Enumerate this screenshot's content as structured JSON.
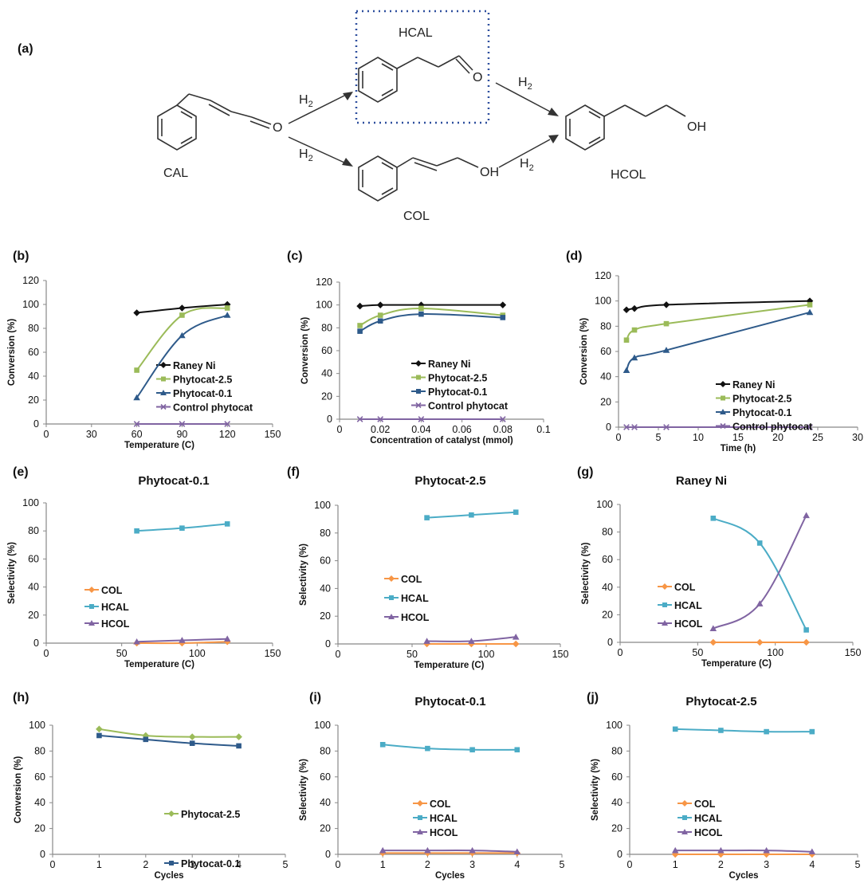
{
  "scheme": {
    "panel_label": "(a)",
    "molecules": {
      "cal": "CAL",
      "hcal": "HCAL",
      "col": "COL",
      "hcol": "HCOL"
    },
    "atoms": {
      "o": "O",
      "oh": "OH"
    },
    "reagent": "H",
    "reagent_sub": "2"
  },
  "chart_data": [
    {
      "id": "b",
      "panel_label": "(b)",
      "type": "line",
      "title": "",
      "xlabel": "Temperature (C)",
      "ylabel": "Conversion (%)",
      "xlim": [
        0,
        150
      ],
      "ylim": [
        0,
        120
      ],
      "xticks": [
        "0",
        "30",
        "60",
        "90",
        "120",
        "150"
      ],
      "yticks": [
        "0",
        "20",
        "40",
        "60",
        "80",
        "100",
        "120"
      ],
      "legend_position": "inside-right",
      "series": [
        {
          "name": "Raney Ni",
          "color": "#111111",
          "marker": "diamond",
          "x": [
            60,
            90,
            120
          ],
          "y": [
            93,
            97,
            100
          ]
        },
        {
          "name": "Phytocat-2.5",
          "color": "#9bbb59",
          "marker": "square",
          "x": [
            60,
            90,
            120
          ],
          "y": [
            45,
            91,
            97
          ]
        },
        {
          "name": "Phytocat-0.1",
          "color": "#2e5a8a",
          "marker": "triangle",
          "x": [
            60,
            90,
            120
          ],
          "y": [
            22,
            74,
            91
          ]
        },
        {
          "name": "Control phytocat",
          "color": "#8064a2",
          "marker": "x",
          "x": [
            60,
            90,
            120
          ],
          "y": [
            0,
            0,
            0
          ]
        }
      ]
    },
    {
      "id": "c",
      "panel_label": "(c)",
      "type": "line",
      "title": "",
      "xlabel": "Concentration of catalyst (mmol)",
      "ylabel": "Conversion (%)",
      "xlim": [
        0,
        0.1
      ],
      "ylim": [
        0,
        120
      ],
      "xticks": [
        "0",
        "0.02",
        "0.04",
        "0.06",
        "0.08",
        "0.1"
      ],
      "yticks": [
        "0",
        "20",
        "40",
        "60",
        "80",
        "100",
        "120"
      ],
      "legend_position": "inside-right",
      "series": [
        {
          "name": "Raney Ni",
          "color": "#111111",
          "marker": "diamond",
          "x": [
            0.01,
            0.02,
            0.04,
            0.08
          ],
          "y": [
            99,
            100,
            100,
            100
          ]
        },
        {
          "name": "Phytocat-2.5",
          "color": "#9bbb59",
          "marker": "square",
          "x": [
            0.01,
            0.02,
            0.04,
            0.08
          ],
          "y": [
            82,
            91,
            97,
            91
          ]
        },
        {
          "name": "Phytocat-0.1",
          "color": "#2e5a8a",
          "marker": "square",
          "x": [
            0.01,
            0.02,
            0.04,
            0.08
          ],
          "y": [
            77,
            86,
            92,
            89
          ]
        },
        {
          "name": "Control phytocat",
          "color": "#8064a2",
          "marker": "x",
          "x": [
            0.01,
            0.02,
            0.04,
            0.08
          ],
          "y": [
            0,
            0,
            0,
            0
          ]
        }
      ]
    },
    {
      "id": "d",
      "panel_label": "(d)",
      "type": "line",
      "title": "",
      "xlabel": "Time (h)",
      "ylabel": "Conversion (%)",
      "xlim": [
        0,
        30
      ],
      "ylim": [
        0,
        120
      ],
      "xticks": [
        "0",
        "5",
        "10",
        "15",
        "20",
        "25",
        "30"
      ],
      "yticks": [
        "0",
        "20",
        "40",
        "60",
        "80",
        "100",
        "120"
      ],
      "legend_position": "inside-right",
      "series": [
        {
          "name": "Raney Ni",
          "color": "#111111",
          "marker": "diamond",
          "x": [
            1,
            2,
            6,
            24
          ],
          "y": [
            93,
            94,
            97,
            100
          ]
        },
        {
          "name": "Phytocat-2.5",
          "color": "#9bbb59",
          "marker": "square",
          "x": [
            1,
            2,
            6,
            24
          ],
          "y": [
            69,
            77,
            82,
            97
          ]
        },
        {
          "name": "Phytocat-0.1",
          "color": "#2e5a8a",
          "marker": "triangle",
          "x": [
            1,
            2,
            6,
            24
          ],
          "y": [
            45,
            55,
            61,
            91
          ]
        },
        {
          "name": "Control phytocat",
          "color": "#8064a2",
          "marker": "x",
          "x": [
            1,
            2,
            6,
            24
          ],
          "y": [
            0,
            0,
            0,
            0
          ]
        }
      ]
    },
    {
      "id": "e",
      "panel_label": "(e)",
      "type": "line",
      "title": "Phytocat-0.1",
      "xlabel": "Temperature (C)",
      "ylabel": "Selectivity (%)",
      "xlim": [
        0,
        150
      ],
      "ylim": [
        0,
        100
      ],
      "xticks": [
        "0",
        "50",
        "100",
        "150"
      ],
      "yticks": [
        "0",
        "20",
        "40",
        "60",
        "80",
        "100"
      ],
      "legend_position": "inside-left",
      "series": [
        {
          "name": "COL",
          "color": "#f79646",
          "marker": "diamond",
          "x": [
            60,
            90,
            120
          ],
          "y": [
            0,
            0,
            1
          ]
        },
        {
          "name": "HCAL",
          "color": "#4bacc6",
          "marker": "square",
          "x": [
            60,
            90,
            120
          ],
          "y": [
            80,
            82,
            85
          ]
        },
        {
          "name": "HCOL",
          "color": "#8064a2",
          "marker": "triangle",
          "x": [
            60,
            90,
            120
          ],
          "y": [
            1,
            2,
            3
          ]
        }
      ]
    },
    {
      "id": "f",
      "panel_label": "(f)",
      "type": "line",
      "title": "Phytocat-2.5",
      "xlabel": "Temperature (C)",
      "ylabel": "Selectivity (%)",
      "xlim": [
        0,
        150
      ],
      "ylim": [
        0,
        100
      ],
      "xticks": [
        "0",
        "50",
        "100",
        "150"
      ],
      "yticks": [
        "0",
        "20",
        "40",
        "60",
        "80",
        "100"
      ],
      "legend_position": "inside-left",
      "series": [
        {
          "name": "COL",
          "color": "#f79646",
          "marker": "diamond",
          "x": [
            60,
            90,
            120
          ],
          "y": [
            0,
            0,
            0
          ]
        },
        {
          "name": "HCAL",
          "color": "#4bacc6",
          "marker": "square",
          "x": [
            60,
            90,
            120
          ],
          "y": [
            91,
            93,
            95
          ]
        },
        {
          "name": "HCOL",
          "color": "#8064a2",
          "marker": "triangle",
          "x": [
            60,
            90,
            120
          ],
          "y": [
            2,
            2,
            5
          ]
        }
      ]
    },
    {
      "id": "g",
      "panel_label": "(g)",
      "type": "line",
      "title": "Raney Ni",
      "xlabel": "Temperature (C)",
      "ylabel": "Selectivity (%)",
      "xlim": [
        0,
        150
      ],
      "ylim": [
        0,
        100
      ],
      "xticks": [
        "0",
        "50",
        "100",
        "150"
      ],
      "yticks": [
        "0",
        "20",
        "40",
        "60",
        "80",
        "100"
      ],
      "legend_position": "inside-left",
      "series": [
        {
          "name": "COL",
          "color": "#f79646",
          "marker": "diamond",
          "x": [
            60,
            90,
            120
          ],
          "y": [
            0,
            0,
            0
          ]
        },
        {
          "name": "HCAL",
          "color": "#4bacc6",
          "marker": "square",
          "x": [
            60,
            90,
            120
          ],
          "y": [
            90,
            72,
            9
          ]
        },
        {
          "name": "HCOL",
          "color": "#8064a2",
          "marker": "triangle",
          "x": [
            60,
            90,
            120
          ],
          "y": [
            10,
            28,
            92
          ]
        }
      ]
    },
    {
      "id": "h",
      "panel_label": "(h)",
      "type": "line",
      "title": "",
      "xlabel": "Cycles",
      "ylabel": "Conversion (%)",
      "xlim": [
        0,
        5
      ],
      "ylim": [
        0,
        100
      ],
      "xticks": [
        "0",
        "1",
        "2",
        "3",
        "4",
        "5"
      ],
      "yticks": [
        "0",
        "20",
        "40",
        "60",
        "80",
        "100"
      ],
      "legend_position": "inside-right-split",
      "series": [
        {
          "name": "Phytocat-2.5",
          "color": "#9bbb59",
          "marker": "diamond",
          "x": [
            1,
            2,
            3,
            4
          ],
          "y": [
            97,
            92,
            91,
            91
          ]
        },
        {
          "name": "Phytocat-0.1",
          "color": "#2e5a8a",
          "marker": "square",
          "x": [
            1,
            2,
            3,
            4
          ],
          "y": [
            92,
            89,
            86,
            84
          ]
        }
      ]
    },
    {
      "id": "i",
      "panel_label": "(i)",
      "type": "line",
      "title": "Phytocat-0.1",
      "xlabel": "Cycles",
      "ylabel": "Selectivity (%)",
      "xlim": [
        0,
        5
      ],
      "ylim": [
        0,
        100
      ],
      "xticks": [
        "0",
        "1",
        "2",
        "3",
        "4",
        "5"
      ],
      "yticks": [
        "0",
        "20",
        "40",
        "60",
        "80",
        "100"
      ],
      "legend_position": "inside-center",
      "series": [
        {
          "name": "COL",
          "color": "#f79646",
          "marker": "diamond",
          "x": [
            1,
            2,
            3,
            4
          ],
          "y": [
            1,
            1,
            1,
            1
          ]
        },
        {
          "name": "HCAL",
          "color": "#4bacc6",
          "marker": "square",
          "x": [
            1,
            2,
            3,
            4
          ],
          "y": [
            85,
            82,
            81,
            81
          ]
        },
        {
          "name": "HCOL",
          "color": "#8064a2",
          "marker": "triangle",
          "x": [
            1,
            2,
            3,
            4
          ],
          "y": [
            3,
            3,
            3,
            2
          ]
        }
      ]
    },
    {
      "id": "j",
      "panel_label": "(j)",
      "type": "line",
      "title": "Phytocat-2.5",
      "xlabel": "Cycles",
      "ylabel": "Selectivity (%)",
      "xlim": [
        0,
        5
      ],
      "ylim": [
        0,
        100
      ],
      "xticks": [
        "0",
        "1",
        "2",
        "3",
        "4",
        "5"
      ],
      "yticks": [
        "0",
        "20",
        "40",
        "60",
        "80",
        "100"
      ],
      "legend_position": "inside-center",
      "series": [
        {
          "name": "COL",
          "color": "#f79646",
          "marker": "diamond",
          "x": [
            1,
            2,
            3,
            4
          ],
          "y": [
            0,
            0,
            0,
            0
          ]
        },
        {
          "name": "HCAL",
          "color": "#4bacc6",
          "marker": "square",
          "x": [
            1,
            2,
            3,
            4
          ],
          "y": [
            97,
            96,
            95,
            95
          ]
        },
        {
          "name": "HCOL",
          "color": "#8064a2",
          "marker": "triangle",
          "x": [
            1,
            2,
            3,
            4
          ],
          "y": [
            3,
            3,
            3,
            2
          ]
        }
      ]
    }
  ]
}
